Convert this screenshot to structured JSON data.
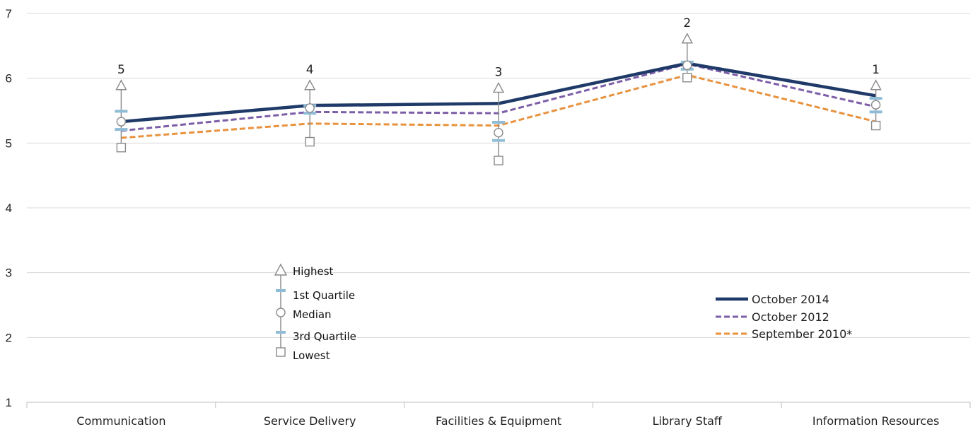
{
  "chart_data": {
    "type": "line",
    "ylim": [
      1,
      7
    ],
    "yticks": [
      "1",
      "2",
      "3",
      "4",
      "5",
      "6",
      "7"
    ],
    "categories": [
      "Communication",
      "Service Delivery",
      "Facilities & Equipment",
      "Library Staff",
      "Information Resources"
    ],
    "ranks": [
      "5",
      "4",
      "3",
      "2",
      "1"
    ],
    "series": [
      {
        "name": "October 2014",
        "values": [
          5.33,
          5.58,
          5.61,
          6.23,
          5.73
        ],
        "color": "#1f3a68",
        "style": "solid"
      },
      {
        "name": "October 2012",
        "values": [
          5.19,
          5.48,
          5.46,
          6.22,
          5.56
        ],
        "color": "#7b5ea7",
        "style": "dashed"
      },
      {
        "name": "September 2010*",
        "values": [
          5.08,
          5.3,
          5.27,
          6.05,
          5.33
        ],
        "color": "#e8923e",
        "style": "dashed"
      }
    ],
    "distribution": {
      "highest": [
        5.89,
        5.89,
        5.85,
        6.61,
        5.89
      ],
      "q1": [
        5.49,
        5.58,
        5.32,
        6.25,
        5.69
      ],
      "median": [
        5.33,
        5.54,
        5.16,
        6.2,
        5.59
      ],
      "q3": [
        5.21,
        5.46,
        5.04,
        6.14,
        5.48
      ],
      "lowest": [
        4.93,
        5.02,
        4.73,
        6.01,
        5.27
      ]
    },
    "marker_legend": {
      "highest": "Highest",
      "q1": "1st Quartile",
      "median": "Median",
      "q3": "3rd Quartile",
      "lowest": "Lowest"
    },
    "grid": true,
    "legend_position": "bottom-right",
    "title": "",
    "xlabel": "",
    "ylabel": ""
  }
}
